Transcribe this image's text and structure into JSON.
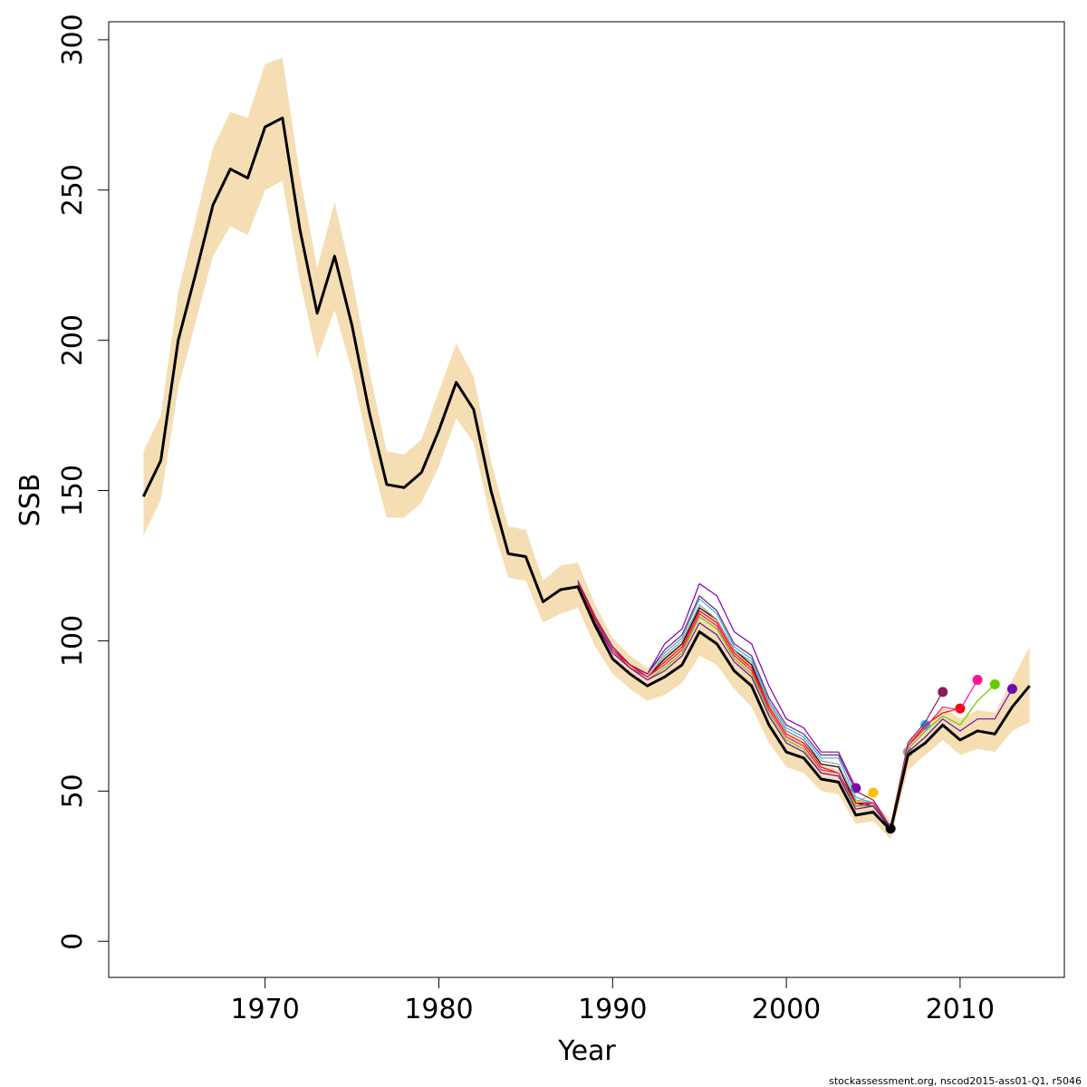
{
  "chart_data": {
    "type": "line",
    "xlabel": "Year",
    "ylabel": "SSB",
    "footer": "stockassessment.org, nscod2015-ass01-Q1, r5046",
    "xlim": [
      1961,
      2016
    ],
    "ylim": [
      -12,
      306
    ],
    "xticks": [
      1970,
      1980,
      1990,
      2000,
      2010
    ],
    "yticks": [
      0,
      50,
      100,
      150,
      200,
      250,
      300
    ],
    "x": [
      1963,
      1964,
      1965,
      1966,
      1967,
      1968,
      1969,
      1970,
      1971,
      1972,
      1973,
      1974,
      1975,
      1976,
      1977,
      1978,
      1979,
      1980,
      1981,
      1982,
      1983,
      1984,
      1985,
      1986,
      1987,
      1988,
      1989,
      1990,
      1991,
      1992,
      1993,
      1994,
      1995,
      1996,
      1997,
      1998,
      1999,
      2000,
      2001,
      2002,
      2003,
      2004,
      2005,
      2006,
      2007,
      2008,
      2009,
      2010,
      2011,
      2012,
      2013,
      2014
    ],
    "band": {
      "color": "#f5deb3",
      "upper": [
        163,
        175,
        216,
        240,
        264,
        276,
        274,
        292,
        294,
        255,
        224,
        246,
        221,
        190,
        163,
        162,
        167,
        183,
        199,
        188,
        160,
        138,
        137,
        120,
        125,
        126,
        112,
        101,
        95,
        91,
        95,
        99,
        111,
        107,
        97,
        92,
        78,
        69,
        66,
        59,
        57,
        47,
        47,
        40,
        67,
        72,
        78,
        74,
        77,
        76,
        87,
        98
      ],
      "lower": [
        135,
        147,
        184,
        206,
        228,
        238,
        235,
        250,
        253,
        220,
        194,
        210,
        190,
        163,
        141,
        141,
        146,
        158,
        174,
        166,
        140,
        121,
        120,
        106,
        109,
        111,
        98,
        89,
        84,
        80,
        82,
        86,
        95,
        92,
        84,
        78,
        66,
        58,
        56,
        50,
        49,
        39,
        40,
        34,
        57,
        62,
        67,
        62,
        64,
        63,
        70,
        73
      ]
    },
    "series": [
      {
        "color": "#000000",
        "values": [
          148,
          160,
          200,
          222,
          245,
          257,
          254,
          271,
          274,
          237,
          209,
          228,
          205,
          176,
          152,
          151,
          156,
          170,
          186,
          177,
          150,
          129,
          128,
          113,
          117,
          118,
          105,
          94,
          89,
          85,
          88,
          92,
          103,
          99,
          90,
          85,
          72,
          63,
          61,
          54,
          53,
          42,
          43,
          37,
          62,
          66,
          72,
          67,
          70,
          69,
          78,
          85
        ]
      },
      {
        "color": "#6a0dad",
        "x": [
          1988,
          1989,
          1990,
          1991,
          1992,
          1993,
          1994,
          1995,
          1996,
          1997,
          1998,
          1999,
          2000,
          2001,
          2002,
          2003,
          2004,
          2005,
          2006,
          2007,
          2008,
          2009,
          2010,
          2011,
          2012,
          2013
        ],
        "values": [
          118,
          106,
          96,
          91,
          87,
          90,
          95,
          106,
          102,
          93,
          88,
          75,
          66,
          63,
          56,
          55,
          44,
          45,
          38,
          63,
          68,
          74,
          70,
          74,
          74,
          84
        ]
      },
      {
        "color": "#66cc00",
        "x": [
          1988,
          1989,
          1990,
          1991,
          1992,
          1993,
          1994,
          1995,
          1996,
          1997,
          1998,
          1999,
          2000,
          2001,
          2002,
          2003,
          2004,
          2005,
          2006,
          2007,
          2008,
          2009,
          2010,
          2011,
          2012
        ],
        "values": [
          118,
          106,
          96,
          91,
          87,
          91,
          96,
          108,
          104,
          94,
          89,
          76,
          67,
          64,
          56,
          55,
          45,
          45,
          38,
          64,
          70,
          75,
          72,
          80,
          85.5
        ]
      },
      {
        "color": "#ff1493",
        "x": [
          1988,
          1989,
          1990,
          1991,
          1992,
          1993,
          1994,
          1995,
          1996,
          1997,
          1998,
          1999,
          2000,
          2001,
          2002,
          2003,
          2004,
          2005,
          2006,
          2007,
          2008,
          2009,
          2010,
          2011
        ],
        "values": [
          119,
          106,
          97,
          91,
          88,
          92,
          97,
          109,
          105,
          95,
          90,
          77,
          68,
          65,
          57,
          56,
          45,
          46,
          38,
          65,
          71,
          78,
          77,
          87
        ]
      },
      {
        "color": "#ff0000",
        "x": [
          1988,
          1989,
          1990,
          1991,
          1992,
          1993,
          1994,
          1995,
          1996,
          1997,
          1998,
          1999,
          2000,
          2001,
          2002,
          2003,
          2004,
          2005,
          2006,
          2007,
          2008,
          2009,
          2010
        ],
        "values": [
          119,
          107,
          97,
          92,
          88,
          93,
          98,
          110,
          106,
          96,
          91,
          78,
          69,
          66,
          58,
          56,
          46,
          46,
          38,
          65,
          72,
          76,
          77.5
        ]
      },
      {
        "color": "#8b1a5a",
        "x": [
          1988,
          1989,
          1990,
          1991,
          1992,
          1993,
          1994,
          1995,
          1996,
          1997,
          1998,
          1999,
          2000,
          2001,
          2002,
          2003,
          2004,
          2005,
          2006,
          2007,
          2008,
          2009
        ],
        "values": [
          120,
          108,
          98,
          92,
          89,
          97,
          102,
          115,
          110,
          99,
          95,
          81,
          72,
          69,
          62,
          62,
          50,
          47,
          38,
          66,
          73,
          83
        ]
      },
      {
        "color": "#1eb4ff",
        "x": [
          1988,
          1989,
          1990,
          1991,
          1992,
          1993,
          1994,
          1995,
          1996,
          1997,
          1998,
          1999,
          2000,
          2001,
          2002,
          2003,
          2004,
          2005,
          2006,
          2007,
          2008
        ],
        "values": [
          119,
          107,
          98,
          92,
          89,
          96,
          101,
          114,
          109,
          98,
          94,
          80,
          71,
          68,
          61,
          61,
          48,
          46,
          38,
          65,
          72
        ]
      },
      {
        "color": "#999999",
        "x": [
          1988,
          1989,
          1990,
          1991,
          1992,
          1993,
          1994,
          1995,
          1996,
          1997,
          1998,
          1999,
          2000,
          2001,
          2002,
          2003,
          2004,
          2005,
          2006,
          2007
        ],
        "values": [
          119,
          107,
          97,
          92,
          88,
          95,
          100,
          112,
          107,
          97,
          93,
          79,
          70,
          67,
          60,
          59,
          47,
          46,
          38,
          63
        ]
      },
      {
        "color": "#000000",
        "x": [
          1988,
          1989,
          1990,
          1991,
          1992,
          1993,
          1994,
          1995,
          1996,
          1997,
          1998,
          1999,
          2000,
          2001,
          2002,
          2003,
          2004,
          2005,
          2006
        ],
        "values": [
          119,
          107,
          97,
          92,
          88,
          94,
          99,
          111,
          107,
          97,
          92,
          79,
          70,
          67,
          59,
          58,
          46,
          45,
          37.5
        ]
      },
      {
        "color": "#ffc000",
        "x": [
          1988,
          1989,
          1990,
          1991,
          1992,
          1993,
          1994,
          1995,
          1996,
          1997,
          1998,
          1999,
          2000,
          2001,
          2002,
          2003,
          2004,
          2005
        ],
        "values": [
          119,
          107,
          97,
          91,
          88,
          92,
          97,
          108,
          104,
          95,
          91,
          77,
          68,
          65,
          57,
          56,
          46,
          49.5
        ]
      },
      {
        "color": "#7b00b4",
        "x": [
          1988,
          1989,
          1990,
          1991,
          1992,
          1993,
          1994,
          1995,
          1996,
          1997,
          1998,
          1999,
          2000,
          2001,
          2002,
          2003,
          2004
        ],
        "values": [
          120,
          108,
          98,
          92,
          89,
          99,
          104,
          119,
          115,
          103,
          99,
          85,
          74,
          71,
          63,
          63,
          51
        ]
      }
    ]
  }
}
